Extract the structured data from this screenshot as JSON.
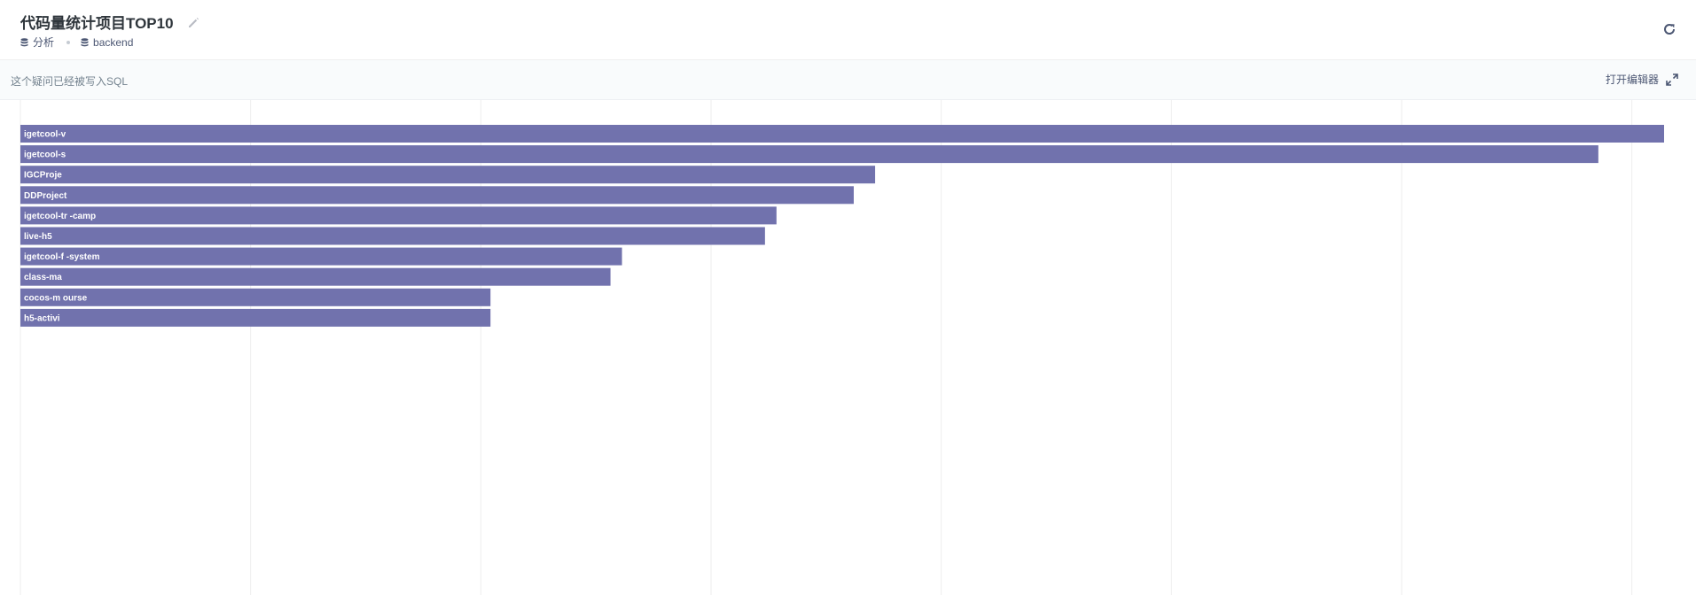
{
  "header": {
    "title": "代码量统计项目TOP10",
    "collection": "分析",
    "database": "backend"
  },
  "sql_bar": {
    "note": "这个疑问已经被写入SQL",
    "open_editor": "打开编辑器"
  },
  "icons": {
    "edit": "pencil-icon",
    "refresh": "refresh-icon",
    "collection": "database-icon",
    "database": "database-icon",
    "expand": "expand-icon"
  },
  "colors": {
    "bar": "#7172ad",
    "grid": "#eeeeee"
  },
  "chart_data": {
    "type": "bar",
    "orientation": "horizontal",
    "categories": [
      "igetcool-v",
      "igetcool-s",
      "IGCProje",
      "DDProject",
      "igetcool-tr   -camp",
      "live-h5",
      "igetcool-f   -system",
      "class-ma",
      "cocos-m   ourse",
      "h5-activi"
    ],
    "values": [
      100,
      96,
      52,
      50.7,
      46,
      45.3,
      36.6,
      35.9,
      28.6,
      28.6
    ],
    "xlim": [
      0,
      100
    ],
    "grid": true,
    "title": "",
    "xlabel": "",
    "ylabel": ""
  }
}
